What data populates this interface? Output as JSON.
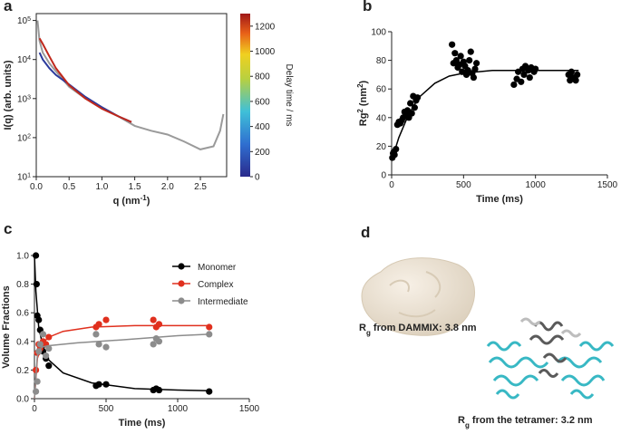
{
  "chart_data": [
    {
      "type": "line",
      "label": "a",
      "ylog": true,
      "frame": true,
      "xlabel": [
        {
          "text": "q (nm"
        },
        {
          "text": "-1",
          "sup": true
        },
        {
          "text": ")"
        }
      ],
      "ylabel": [
        {
          "text": "I(q) (arb. units)"
        }
      ],
      "xlim": [
        0,
        2.9
      ],
      "xticks": [
        {
          "value": 0,
          "label": "0.0"
        },
        {
          "value": 0.5,
          "label": "0.5"
        },
        {
          "value": 1,
          "label": "1.0"
        },
        {
          "value": 1.5,
          "label": "1.5"
        },
        {
          "value": 2,
          "label": "2.0"
        },
        {
          "value": 2.5,
          "label": "2.5"
        }
      ],
      "ylim": [
        10,
        150000
      ],
      "yticks": [
        {
          "value": 10,
          "label": "10",
          "exponent": "1"
        },
        {
          "value": 100,
          "label": "10",
          "exponent": "2"
        },
        {
          "value": 1000,
          "label": "10",
          "exponent": "3"
        },
        {
          "value": 10000,
          "label": "10",
          "exponent": "4"
        },
        {
          "value": 100000,
          "label": "10",
          "exponent": "5"
        }
      ],
      "series": [
        {
          "mode": "line",
          "color": "#9a9a9a",
          "x": [
            0.02,
            0.05,
            0.1,
            0.2,
            0.3,
            0.5,
            0.75,
            1.0,
            1.25,
            1.5,
            1.75,
            2.0,
            2.25,
            2.5,
            2.7,
            2.8,
            2.85
          ],
          "values": [
            100000,
            30000,
            15000,
            8000,
            5000,
            2000,
            1000,
            600,
            350,
            200,
            150,
            120,
            80,
            50,
            60,
            150,
            400
          ]
        },
        {
          "mode": "line",
          "color": "#2b3a9c",
          "x": [
            0.05,
            0.1,
            0.2,
            0.3,
            0.5,
            0.75,
            1.0,
            1.25,
            1.45
          ],
          "values": [
            15000,
            10000,
            6000,
            4000,
            2300,
            1100,
            600,
            350,
            250
          ]
        },
        {
          "mode": "line",
          "color": "#c0281c",
          "x": [
            0.05,
            0.1,
            0.2,
            0.3,
            0.5,
            0.75,
            1.0,
            1.25,
            1.45
          ],
          "values": [
            35000,
            25000,
            12000,
            6000,
            2200,
            1000,
            550,
            350,
            250
          ]
        }
      ],
      "colorbar": {
        "label": "Delay time / ms",
        "lim": [
          0,
          1300
        ],
        "ticks": [
          0,
          200,
          400,
          600,
          800,
          1000,
          1200
        ]
      }
    },
    {
      "type": "scatter",
      "label": "b",
      "xlabel": [
        {
          "text": "Time (ms)"
        }
      ],
      "ylabel": [
        {
          "text": "Rg"
        },
        {
          "text": "2",
          "sup": true
        },
        {
          "text": " (nm"
        },
        {
          "text": "2",
          "sup": true
        },
        {
          "text": ")"
        }
      ],
      "xlim": [
        0,
        1500
      ],
      "xticks": [
        0,
        500,
        1000,
        1500
      ],
      "ylim": [
        0,
        100
      ],
      "yticks": [
        0,
        20,
        40,
        60,
        80,
        100
      ],
      "series": [
        {
          "mode": "markers",
          "color": "#000000",
          "x": [
            5,
            10,
            15,
            20,
            30,
            40,
            50,
            60,
            70,
            80,
            90,
            100,
            110,
            120,
            130,
            140,
            150,
            160,
            170,
            180,
            420,
            430,
            440,
            450,
            460,
            470,
            480,
            490,
            500,
            510,
            520,
            530,
            540,
            550,
            560,
            570,
            580,
            590,
            850,
            870,
            880,
            900,
            910,
            920,
            930,
            950,
            960,
            970,
            990,
            1000,
            1230,
            1240,
            1250,
            1260,
            1280,
            1290
          ],
          "values": [
            12,
            15,
            16,
            14,
            18,
            35,
            37,
            36,
            38,
            40,
            44,
            42,
            45,
            40,
            50,
            43,
            55,
            47,
            52,
            54,
            91,
            78,
            85,
            80,
            75,
            77,
            83,
            72,
            79,
            76,
            70,
            73,
            80,
            86,
            71,
            68,
            74,
            78,
            63,
            67,
            72,
            65,
            74,
            70,
            76,
            73,
            68,
            75,
            72,
            74,
            70,
            66,
            72,
            68,
            66,
            70
          ]
        },
        {
          "mode": "line",
          "color": "#000000",
          "x": [
            0,
            50,
            100,
            150,
            200,
            300,
            400,
            500,
            700,
            1000,
            1300
          ],
          "values": [
            10,
            26,
            38,
            48,
            55,
            64,
            69,
            71,
            73,
            73,
            73
          ]
        }
      ]
    },
    {
      "type": "scatter",
      "label": "c",
      "legend": "upper right",
      "xlabel": [
        {
          "text": "Time (ms)"
        }
      ],
      "ylabel": [
        {
          "text": "Volume Fractions"
        }
      ],
      "xlim": [
        0,
        1500
      ],
      "xticks": [
        0,
        500,
        1000,
        1500
      ],
      "ylim": [
        0,
        1.0
      ],
      "yticks": [
        {
          "value": 0,
          "label": "0.0"
        },
        {
          "value": 0.2,
          "label": "0.2"
        },
        {
          "value": 0.4,
          "label": "0.4"
        },
        {
          "value": 0.6,
          "label": "0.6"
        },
        {
          "value": 0.8,
          "label": "0.8"
        },
        {
          "value": 1.0,
          "label": "1.0"
        }
      ],
      "series": [
        {
          "name": "Monomer",
          "mode": "markers",
          "color": "#000000",
          "x": [
            10,
            15,
            20,
            30,
            40,
            50,
            60,
            80,
            100,
            430,
            450,
            500,
            830,
            850,
            870,
            1220
          ],
          "values": [
            1.0,
            0.8,
            0.58,
            0.55,
            0.48,
            0.36,
            0.33,
            0.28,
            0.23,
            0.09,
            0.1,
            0.1,
            0.06,
            0.07,
            0.06,
            0.05
          ],
          "fit": {
            "x": [
              0,
              10,
              30,
              60,
              100,
              200,
              400,
              700,
              1000,
              1220
            ],
            "values": [
              1.0,
              0.75,
              0.5,
              0.36,
              0.27,
              0.18,
              0.11,
              0.07,
              0.06,
              0.055
            ]
          }
        },
        {
          "name": "Complex",
          "mode": "markers",
          "color": "#e0301e",
          "x": [
            10,
            20,
            30,
            40,
            60,
            80,
            100,
            430,
            450,
            500,
            830,
            850,
            870,
            1220
          ],
          "values": [
            0.2,
            0.32,
            0.38,
            0.35,
            0.4,
            0.38,
            0.43,
            0.5,
            0.52,
            0.55,
            0.55,
            0.5,
            0.52,
            0.5
          ],
          "fit": {
            "x": [
              0,
              20,
              50,
              100,
              200,
              400,
              700,
              1000,
              1220
            ],
            "values": [
              0,
              0.28,
              0.38,
              0.43,
              0.47,
              0.5,
              0.51,
              0.51,
              0.51
            ]
          }
        },
        {
          "name": "Intermediate",
          "mode": "markers",
          "color": "#8c8c8c",
          "x": [
            10,
            20,
            30,
            40,
            60,
            80,
            100,
            430,
            450,
            500,
            830,
            850,
            870,
            1220
          ],
          "values": [
            0.05,
            0.12,
            0.33,
            0.38,
            0.45,
            0.3,
            0.35,
            0.45,
            0.38,
            0.36,
            0.38,
            0.42,
            0.4,
            0.45
          ],
          "fit": {
            "x": [
              0,
              20,
              50,
              100,
              300,
              600,
              1000,
              1220
            ],
            "values": [
              0,
              0.3,
              0.36,
              0.37,
              0.39,
              0.41,
              0.44,
              0.45
            ]
          }
        }
      ]
    }
  ],
  "panel_d": {
    "label": "d",
    "caption_1": [
      {
        "text": "R"
      },
      {
        "text": "g",
        "sub": true
      },
      {
        "text": " from DAMMIX: 3.8 nm"
      }
    ],
    "caption_2": [
      {
        "text": "R"
      },
      {
        "text": "g",
        "sub": true
      },
      {
        "text": " from the tetramer: 3.2 nm"
      }
    ]
  }
}
